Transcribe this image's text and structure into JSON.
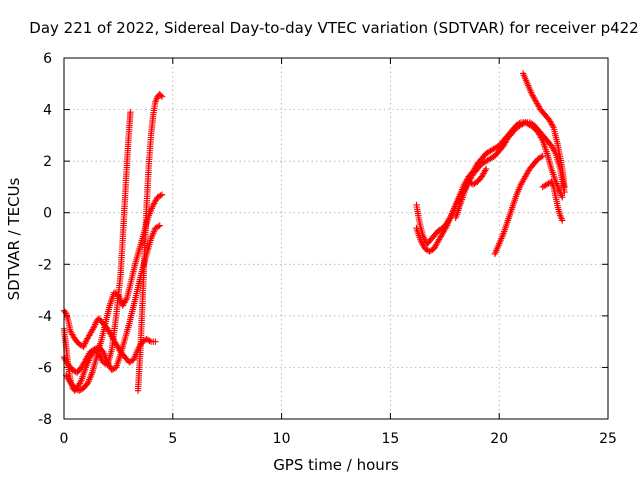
{
  "chart_data": {
    "type": "scatter",
    "title": "Day 221 of 2022, Sidereal Day-to-day VTEC variation (SDTVAR) for receiver p422",
    "xlabel": "GPS time / hours",
    "ylabel": "SDTVAR / TECUs",
    "xlim": [
      0,
      25
    ],
    "ylim": [
      -8,
      6
    ],
    "xticks": [
      0,
      5,
      10,
      15,
      20,
      25
    ],
    "yticks": [
      -8,
      -6,
      -4,
      -2,
      0,
      2,
      4,
      6
    ],
    "xtick_labels": [
      "0",
      "5",
      "10",
      "15",
      "20",
      "25"
    ],
    "ytick_labels": [
      "-8",
      "-6",
      "-4",
      "-2",
      "0",
      "2",
      "4",
      "6"
    ],
    "grid": true,
    "marker": "+",
    "series": [
      {
        "name": "SDTVAR",
        "color": "#ff0000",
        "tracks": [
          {
            "x": [
              0.0,
              0.1,
              0.2,
              0.3,
              0.5,
              0.7,
              0.9,
              1.0,
              1.2,
              1.4,
              1.5,
              1.6,
              1.8,
              2.0,
              2.2,
              2.4,
              2.6,
              2.8,
              3.0,
              3.2,
              3.4,
              3.6,
              3.8,
              4.0,
              4.2
            ],
            "y": [
              -3.8,
              -3.9,
              -4.2,
              -4.6,
              -4.9,
              -5.1,
              -5.2,
              -5.0,
              -4.7,
              -4.4,
              -4.2,
              -4.1,
              -4.3,
              -4.5,
              -4.8,
              -5.1,
              -5.4,
              -5.6,
              -5.8,
              -5.7,
              -5.3,
              -5.0,
              -4.9,
              -5.0,
              -5.0
            ]
          },
          {
            "x": [
              0.0,
              0.1,
              0.2,
              0.3,
              0.4,
              0.5,
              0.6,
              0.8,
              1.0,
              1.2,
              1.4,
              1.6,
              1.8,
              2.0,
              2.2,
              2.4,
              2.6,
              2.8,
              3.0,
              3.2,
              3.4,
              3.6,
              3.8,
              4.0,
              4.2,
              4.4
            ],
            "y": [
              -4.5,
              -5.2,
              -6.0,
              -6.5,
              -6.8,
              -6.9,
              -6.8,
              -6.5,
              -6.0,
              -5.6,
              -5.3,
              -5.2,
              -5.4,
              -5.8,
              -6.1,
              -6.0,
              -5.5,
              -4.9,
              -4.3,
              -3.6,
              -2.9,
              -2.2,
              -1.6,
              -1.0,
              -0.6,
              -0.5
            ]
          },
          {
            "x": [
              0.1,
              0.3,
              0.5,
              0.7,
              0.9,
              1.1,
              1.3,
              1.5,
              1.7,
              1.9,
              2.1,
              2.3,
              2.5,
              2.7,
              2.9,
              3.1,
              3.3,
              3.5,
              3.7,
              3.9,
              4.1,
              4.3,
              4.5
            ],
            "y": [
              -6.3,
              -6.6,
              -6.8,
              -6.9,
              -6.8,
              -6.6,
              -6.2,
              -5.6,
              -5.0,
              -4.3,
              -3.6,
              -3.1,
              -3.2,
              -3.6,
              -3.3,
              -2.6,
              -1.9,
              -1.3,
              -0.7,
              -0.1,
              0.3,
              0.6,
              0.7
            ]
          },
          {
            "x": [
              0.0,
              0.2,
              0.4,
              0.6,
              0.8,
              1.0,
              1.2,
              1.4,
              1.6,
              1.8,
              2.0,
              2.2,
              2.4,
              2.6,
              2.7,
              2.8,
              2.9,
              3.0,
              3.05
            ],
            "y": [
              -5.6,
              -5.9,
              -6.1,
              -6.2,
              -6.0,
              -5.7,
              -5.4,
              -5.3,
              -5.5,
              -5.8,
              -5.9,
              -5.3,
              -4.0,
              -2.4,
              -1.0,
              0.5,
              2.0,
              3.3,
              3.9
            ]
          },
          {
            "x": [
              3.4,
              3.5,
              3.6,
              3.7,
              3.8,
              3.9,
              4.0,
              4.1,
              4.2,
              4.3,
              4.4,
              4.5
            ],
            "y": [
              -6.9,
              -5.5,
              -3.6,
              -1.6,
              0.3,
              1.9,
              3.0,
              3.8,
              4.3,
              4.5,
              4.6,
              4.5
            ]
          },
          {
            "x": [
              16.2,
              16.3,
              16.4,
              16.5,
              16.6,
              16.7,
              16.8,
              17.0,
              17.2,
              17.4,
              17.6,
              17.8,
              18.0,
              18.2,
              18.4,
              18.6,
              18.8,
              19.0,
              19.2,
              19.4,
              19.6,
              19.8,
              20.0,
              20.2,
              20.4,
              20.6,
              20.8,
              21.0,
              21.2,
              21.4,
              21.6,
              21.8,
              22.0,
              22.2,
              22.4,
              22.6,
              22.8,
              22.9
            ],
            "y": [
              0.3,
              -0.2,
              -0.6,
              -0.9,
              -1.1,
              -1.2,
              -1.1,
              -0.9,
              -0.7,
              -0.6,
              -0.4,
              -0.1,
              0.3,
              0.7,
              1.1,
              1.4,
              1.6,
              1.9,
              2.1,
              2.3,
              2.4,
              2.5,
              2.6,
              2.8,
              3.0,
              3.2,
              3.4,
              3.5,
              3.5,
              3.4,
              3.3,
              3.1,
              2.8,
              2.3,
              1.7,
              1.2,
              0.8,
              0.6
            ]
          },
          {
            "x": [
              16.2,
              16.4,
              16.6,
              16.8,
              17.0,
              17.2,
              17.4,
              17.6,
              17.8,
              18.0,
              18.2,
              18.4,
              18.6,
              18.8,
              19.0,
              19.2,
              19.4,
              19.6,
              19.8,
              20.0,
              20.2,
              20.4,
              20.6,
              20.8,
              21.0,
              21.2,
              21.4,
              21.6,
              21.8,
              22.0,
              22.2,
              22.4,
              22.6,
              22.8,
              23.0
            ],
            "y": [
              -0.6,
              -1.1,
              -1.4,
              -1.5,
              -1.4,
              -1.1,
              -0.8,
              -0.5,
              -0.1,
              0.3,
              0.6,
              0.9,
              1.2,
              1.5,
              1.7,
              1.9,
              2.0,
              2.1,
              2.2,
              2.4,
              2.6,
              2.9,
              3.1,
              3.3,
              3.4,
              3.5,
              3.5,
              3.4,
              3.2,
              3.0,
              2.8,
              2.6,
              2.3,
              1.7,
              0.8
            ]
          },
          {
            "x": [
              21.1,
              21.3,
              21.5,
              21.7,
              21.9,
              22.1,
              22.3,
              22.5,
              22.7,
              22.9,
              23.0
            ],
            "y": [
              5.4,
              5.0,
              4.6,
              4.3,
              4.0,
              3.8,
              3.6,
              3.3,
              2.6,
              1.7,
              1.0
            ]
          },
          {
            "x": [
              19.8,
              19.9,
              20.0,
              20.2,
              20.4,
              20.6,
              20.8,
              21.0,
              21.2,
              21.4,
              21.6,
              21.8,
              22.0
            ],
            "y": [
              -1.6,
              -1.4,
              -1.2,
              -0.8,
              -0.3,
              0.2,
              0.7,
              1.1,
              1.4,
              1.7,
              1.9,
              2.1,
              2.2
            ]
          },
          {
            "x": [
              22.0,
              22.2,
              22.4,
              22.5,
              22.6,
              22.7,
              22.8,
              22.9
            ],
            "y": [
              1.0,
              1.1,
              1.2,
              1.0,
              0.6,
              0.2,
              -0.1,
              -0.3
            ]
          },
          {
            "x": [
              18.0,
              18.2,
              18.4,
              18.6,
              18.8,
              19.0,
              19.2,
              19.4
            ],
            "y": [
              -0.2,
              0.3,
              0.8,
              1.2,
              1.1,
              1.2,
              1.4,
              1.7
            ]
          }
        ]
      }
    ]
  }
}
